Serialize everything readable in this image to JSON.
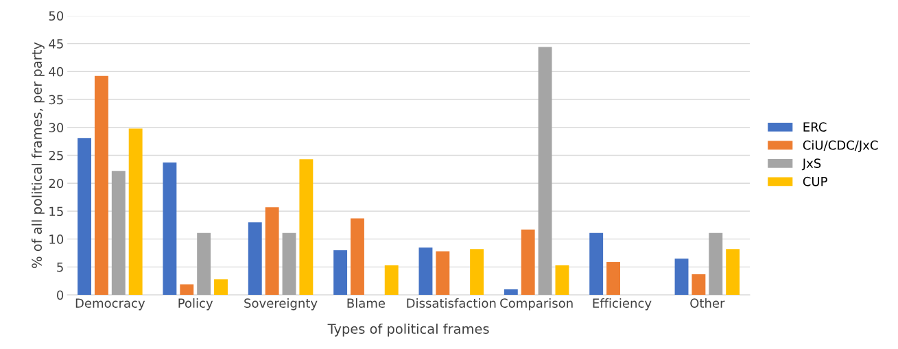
{
  "chart_data": {
    "type": "bar",
    "xlabel": "Types of political frames",
    "ylabel": "% of all political frames, per party",
    "categories": [
      "Democracy",
      "Policy",
      "Sovereignty",
      "Blame",
      "Dissatisfaction",
      "Comparison",
      "Efficiency",
      "Other"
    ],
    "series": [
      {
        "name": "ERC",
        "color": "#4472c4",
        "values": [
          28.1,
          23.7,
          13.0,
          8.0,
          8.5,
          1.0,
          11.1,
          6.5
        ]
      },
      {
        "name": "CiU/CDC/JxC",
        "color": "#ed7d31",
        "values": [
          39.2,
          1.9,
          15.7,
          13.7,
          7.8,
          11.7,
          5.9,
          3.7
        ]
      },
      {
        "name": "JxS",
        "color": "#a5a5a5",
        "values": [
          22.2,
          11.1,
          11.1,
          0,
          0,
          44.4,
          0,
          11.1
        ]
      },
      {
        "name": "CUP",
        "color": "#ffc000",
        "values": [
          29.8,
          2.8,
          24.3,
          5.3,
          8.2,
          5.3,
          0,
          8.2
        ]
      }
    ],
    "ylim": [
      0,
      50
    ],
    "yticks": [
      0,
      5,
      10,
      15,
      20,
      25,
      30,
      35,
      40,
      45,
      50
    ],
    "grid": "y",
    "legend": "right"
  }
}
